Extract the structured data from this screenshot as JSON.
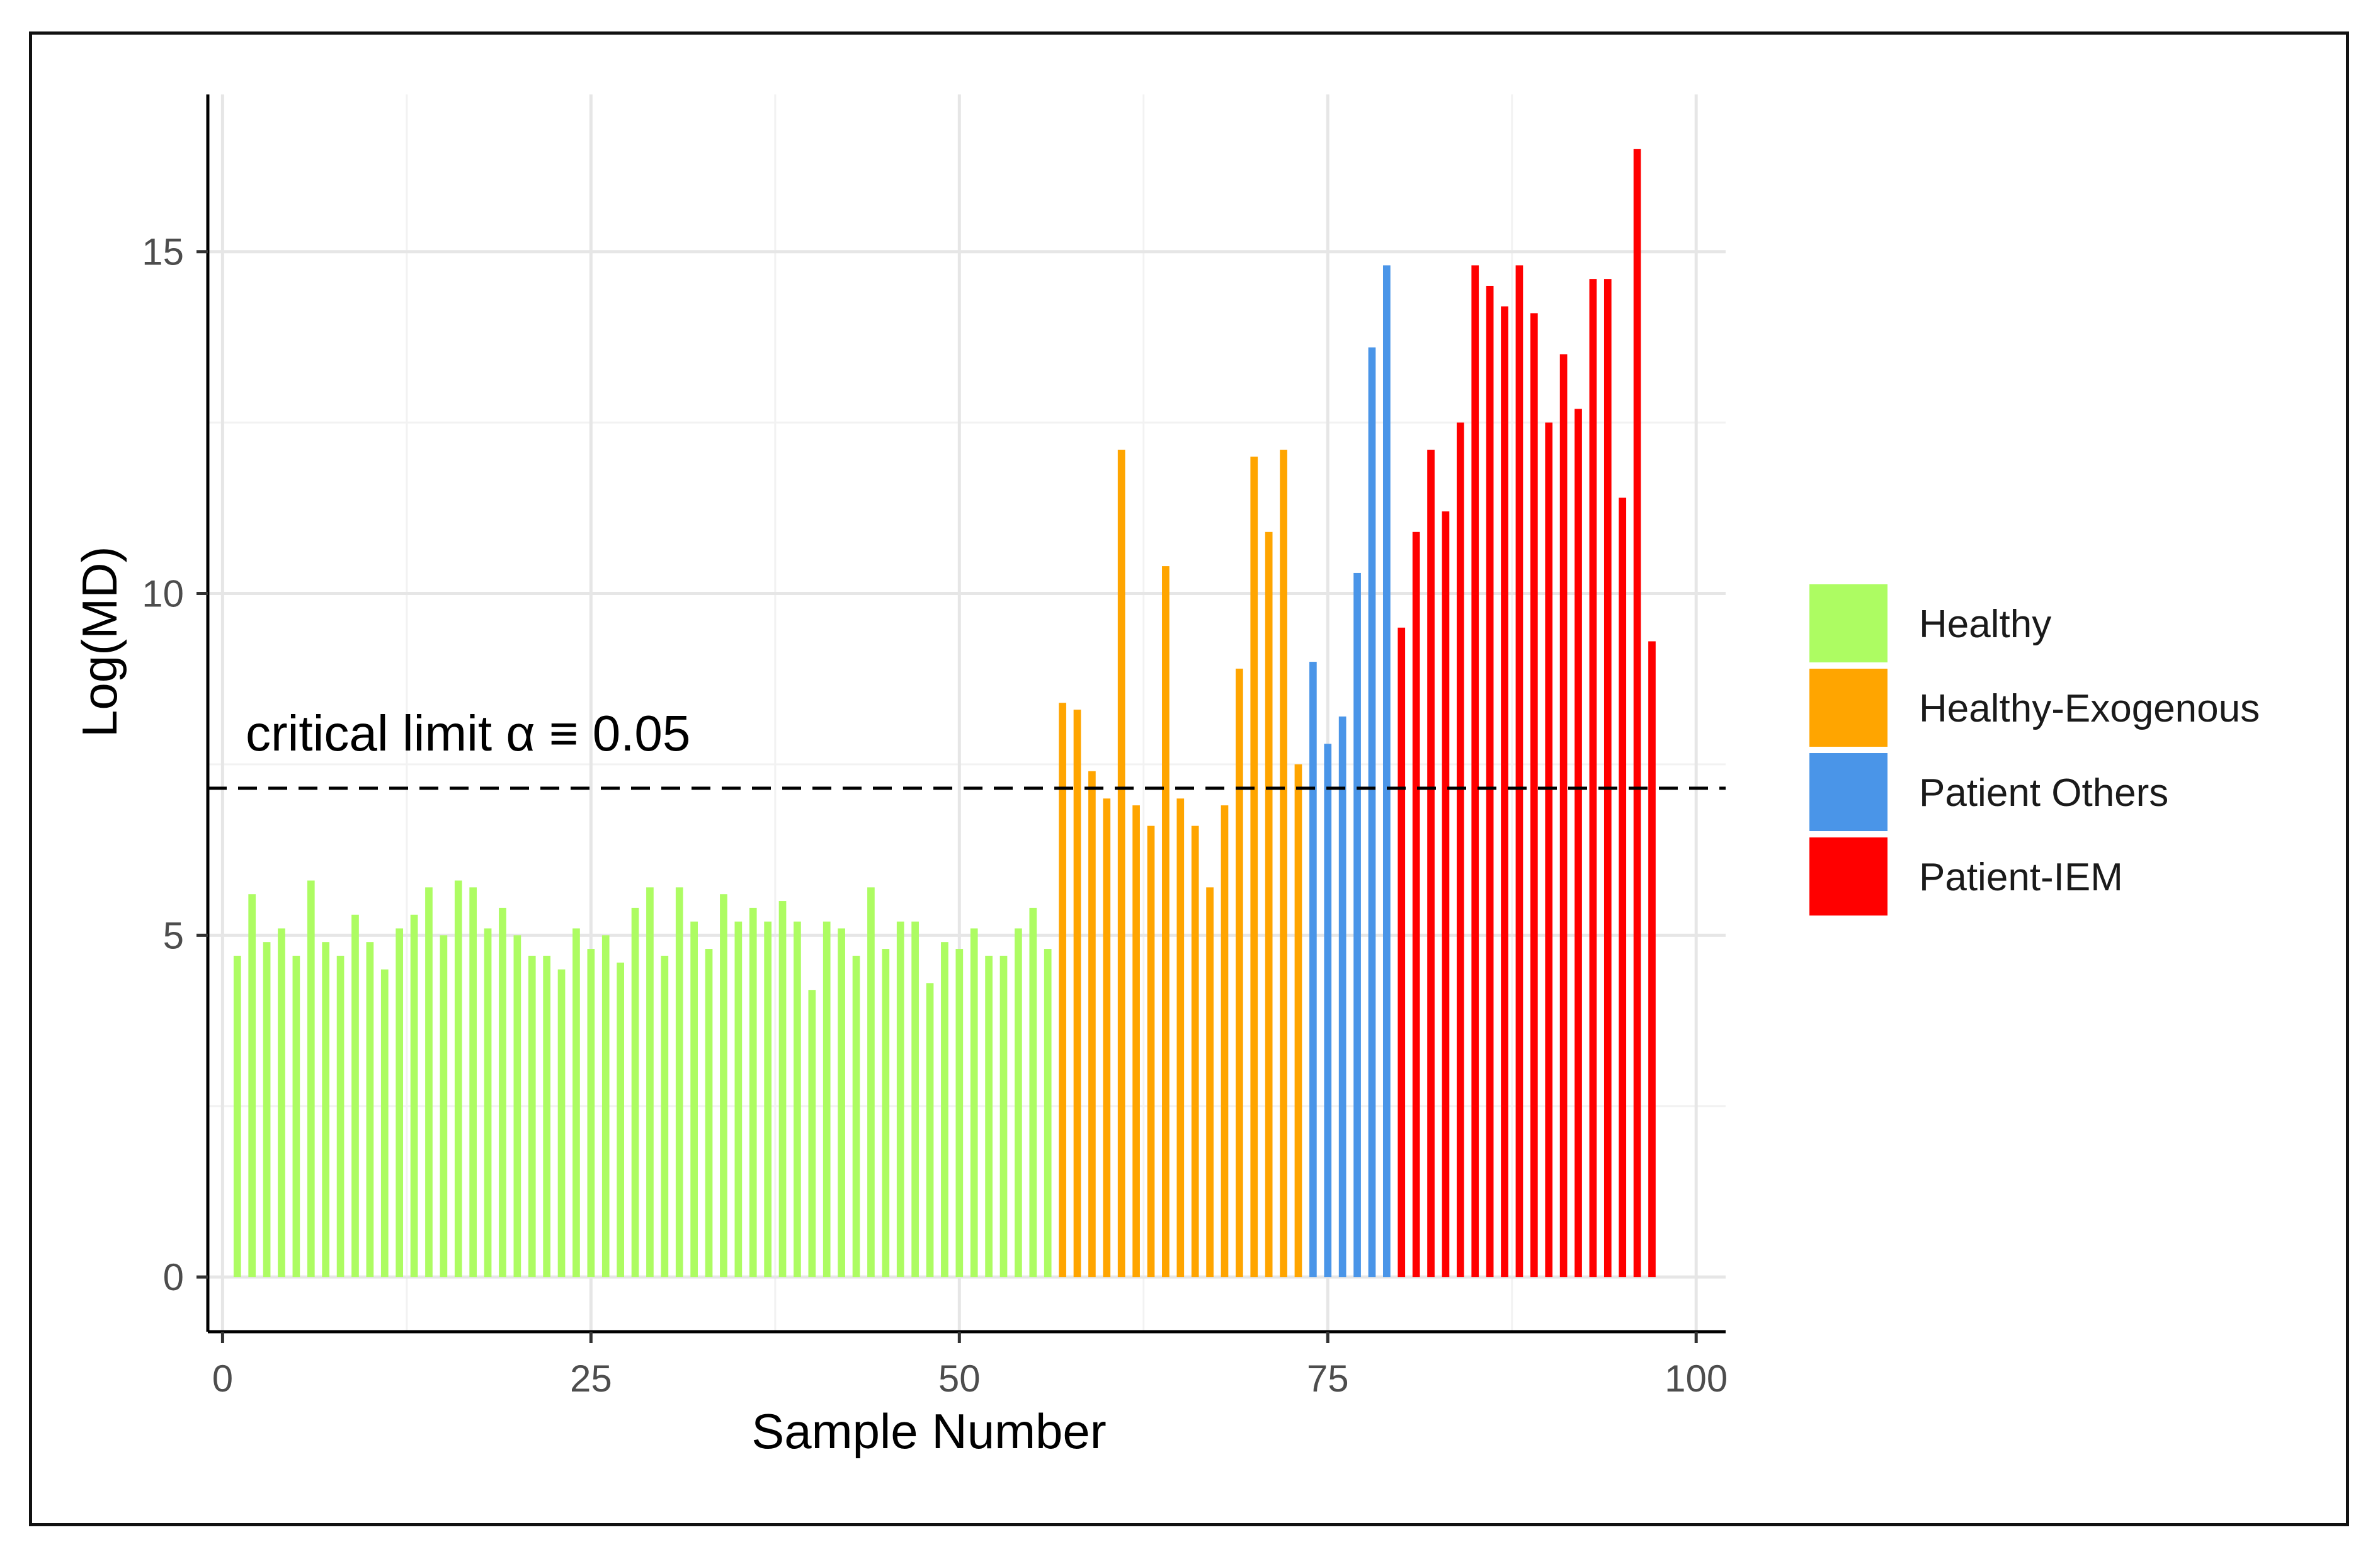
{
  "chart_data": {
    "type": "bar",
    "title": "",
    "xlabel": "Sample Number",
    "ylabel": "Log(MD)",
    "xlim": [
      -1,
      102
    ],
    "ylim": [
      -0.8,
      17.3
    ],
    "x_ticks": [
      0,
      25,
      50,
      75,
      100
    ],
    "y_ticks": [
      0,
      5,
      10,
      15
    ],
    "x_tick_labels": [
      "0",
      "25",
      "50",
      "75",
      "100"
    ],
    "y_tick_labels": [
      "0",
      "5",
      "10",
      "15"
    ],
    "grid": true,
    "threshold": {
      "value": 7.15,
      "label": "critical limit α ≡ 0.05",
      "style": "dashed"
    },
    "legend_position": "right",
    "series": [
      {
        "name": "Healthy",
        "color": "#adfc62",
        "x": [
          1,
          2,
          3,
          4,
          5,
          6,
          7,
          8,
          9,
          10,
          11,
          12,
          13,
          14,
          15,
          16,
          17,
          18,
          19,
          20,
          21,
          22,
          23,
          24,
          25,
          26,
          27,
          28,
          29,
          30,
          31,
          32,
          33,
          34,
          35,
          36,
          37,
          38,
          39,
          40,
          41,
          42,
          43,
          44,
          45,
          46,
          47,
          48,
          49,
          50,
          51,
          52,
          53,
          54,
          55,
          56
        ],
        "values": [
          4.7,
          5.6,
          4.9,
          5.1,
          4.7,
          5.8,
          4.9,
          4.7,
          5.3,
          4.9,
          4.5,
          5.1,
          5.3,
          5.7,
          5.0,
          5.8,
          5.7,
          5.1,
          5.4,
          5.0,
          4.7,
          4.7,
          4.5,
          5.1,
          4.8,
          5.0,
          4.6,
          5.4,
          5.7,
          4.7,
          5.7,
          5.2,
          4.8,
          5.6,
          5.2,
          5.4,
          5.2,
          5.5,
          5.2,
          4.2,
          5.2,
          5.1,
          4.7,
          5.7,
          4.8,
          5.2,
          5.2,
          4.3,
          4.9,
          4.8,
          5.1,
          4.7,
          4.7,
          5.1,
          5.4,
          4.8
        ]
      },
      {
        "name": "Healthy-Exogenous",
        "color": "#ffa500",
        "x": [
          57,
          58,
          59,
          60,
          61,
          62,
          63,
          64,
          65,
          66,
          67,
          68,
          69,
          70,
          71,
          72,
          73
        ],
        "values": [
          8.4,
          8.3,
          7.4,
          7.0,
          12.1,
          6.9,
          6.6,
          10.4,
          7.0,
          6.6,
          5.7,
          6.9,
          8.9,
          12.0,
          10.9,
          12.1,
          7.5
        ]
      },
      {
        "name": "Patient Others",
        "color": "#4a95e8",
        "x": [
          74,
          75,
          76,
          77,
          78,
          79
        ],
        "values": [
          9.0,
          7.8,
          8.2,
          10.3,
          13.6,
          14.8
        ]
      },
      {
        "name": "Patient-IEM",
        "color": "#ff0000",
        "x": [
          80,
          81,
          82,
          83,
          84,
          85,
          86,
          87,
          88,
          89,
          90,
          91,
          92,
          93,
          94,
          95,
          96,
          97
        ],
        "values": [
          9.5,
          10.9,
          12.1,
          11.2,
          12.5,
          14.8,
          14.5,
          14.2,
          14.8,
          14.1,
          12.5,
          13.5,
          12.7,
          14.6,
          14.6,
          11.4,
          16.5,
          9.3
        ]
      }
    ]
  }
}
